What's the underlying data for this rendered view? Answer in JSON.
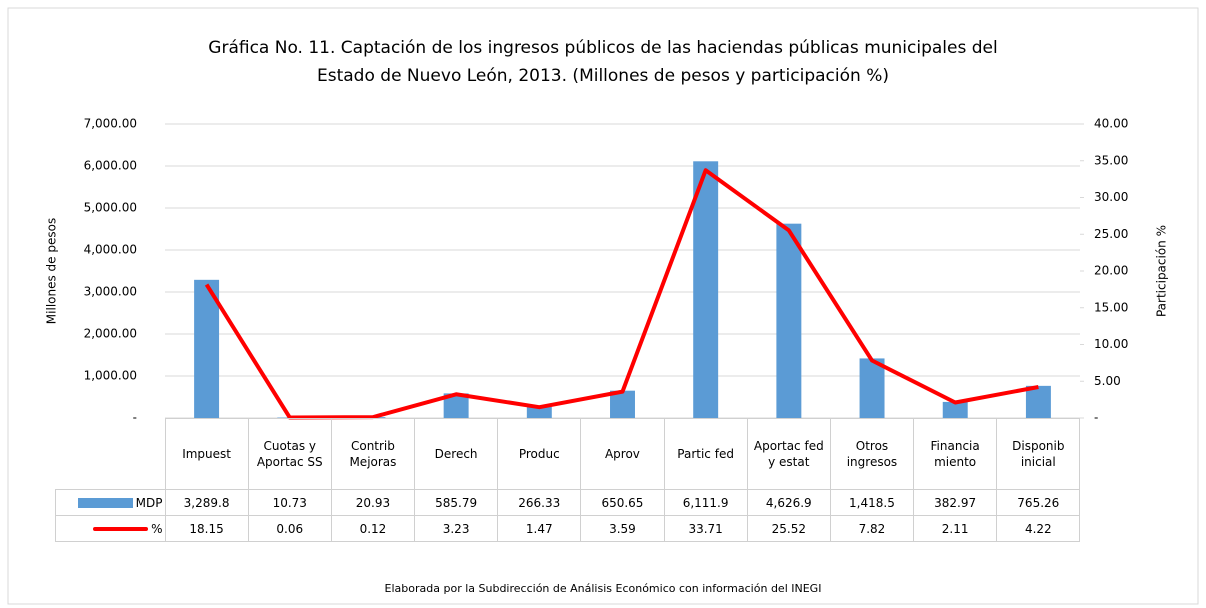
{
  "chart_data": {
    "type": "bar_line",
    "title": [
      "Gráfica No.  11. Captación de los ingresos públicos de las haciendas públicas municipales del",
      "Estado de Nuevo León, 2013. (Millones de pesos y participación %)"
    ],
    "y_label": "Millones de pesos",
    "y2_label": "Participación %",
    "source": "Elaborada por la Subdirección de Análisis Económico con información del INEGI",
    "categories": [
      "Impuest",
      "Cuotas y Aportac SS",
      "Contrib Mejoras",
      "Derech",
      "Produc",
      "Aprov",
      "Partic fed",
      "Aportac fed y estat",
      "Otros ingresos",
      "Financia miento",
      "Disponib inicial"
    ],
    "series": [
      {
        "name": "MDP",
        "type": "bar",
        "color": "#5b9bd5",
        "values": [
          3289.8,
          10.73,
          20.93,
          585.79,
          266.33,
          650.65,
          6111.9,
          4626.9,
          1418.5,
          382.97,
          765.26
        ],
        "value_labels": [
          "3,289.8",
          "10.73",
          "20.93",
          "585.79",
          "266.33",
          "650.65",
          "6,111.9",
          "4,626.9",
          "1,418.5",
          "382.97",
          "765.26"
        ]
      },
      {
        "name": "%",
        "type": "line",
        "axis": "y2",
        "color": "#ff0000",
        "values": [
          18.15,
          0.06,
          0.12,
          3.23,
          1.47,
          3.59,
          33.71,
          25.52,
          7.82,
          2.11,
          4.22
        ]
      }
    ],
    "ylim": [
      0,
      7000
    ],
    "yticks": [
      {
        "value": 0,
        "label": "-"
      },
      {
        "value": 1000,
        "label": "1,000.00"
      },
      {
        "value": 2000,
        "label": "2,000.00"
      },
      {
        "value": 3000,
        "label": "3,000.00"
      },
      {
        "value": 4000,
        "label": "4,000.00"
      },
      {
        "value": 5000,
        "label": "5,000.00"
      },
      {
        "value": 6000,
        "label": "6,000.00"
      },
      {
        "value": 7000,
        "label": "7,000.00"
      }
    ],
    "y2lim": [
      0,
      40
    ],
    "y2ticks": [
      {
        "value": 0,
        "label": "-"
      },
      {
        "value": 5,
        "label": "5.00"
      },
      {
        "value": 10,
        "label": "10.00"
      },
      {
        "value": 15,
        "label": "15.00"
      },
      {
        "value": 20,
        "label": "20.00"
      },
      {
        "value": 25,
        "label": "25.00"
      },
      {
        "value": 30,
        "label": "30.00"
      },
      {
        "value": 35,
        "label": "35.00"
      },
      {
        "value": 40,
        "label": "40.00"
      }
    ],
    "grid": true
  }
}
